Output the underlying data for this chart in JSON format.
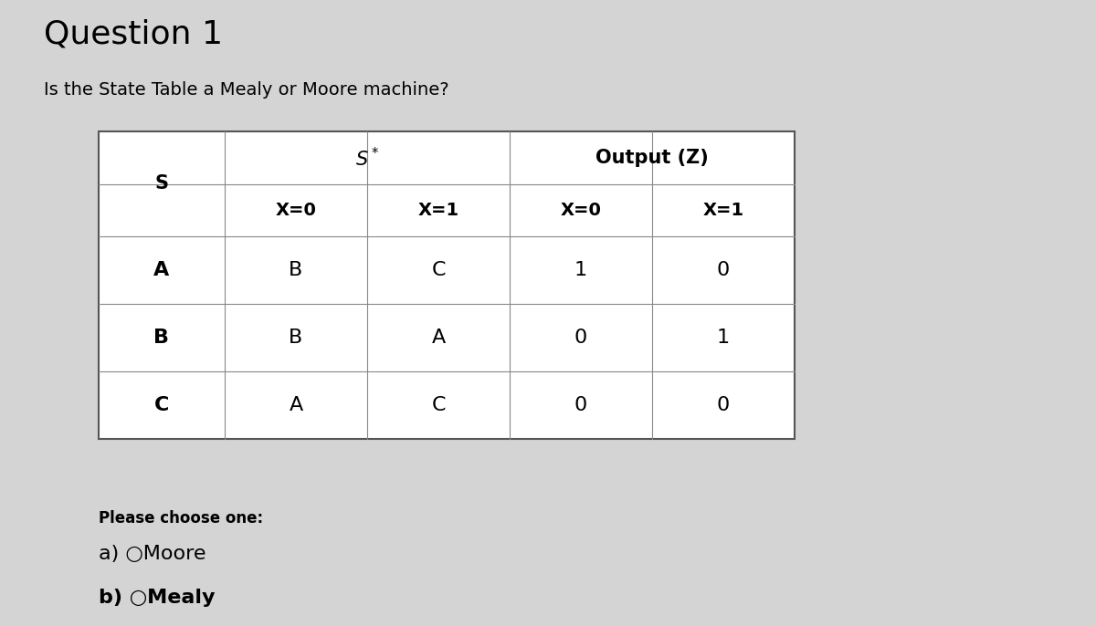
{
  "title": "Question 1",
  "subtitle": "Is the State Table a Mealy or Moore machine?",
  "background_color": "#d4d4d4",
  "rows": [
    [
      "A",
      "B",
      "C",
      "1",
      "0"
    ],
    [
      "B",
      "B",
      "A",
      "0",
      "1"
    ],
    [
      "C",
      "A",
      "C",
      "0",
      "0"
    ]
  ],
  "please_choose": "Please choose one:",
  "option_a": "a) ○Moore",
  "option_b": "b) ○Mealy",
  "title_fontsize": 26,
  "subtitle_fontsize": 14,
  "table_fontsize": 14,
  "options_fontsize": 16,
  "please_fontsize": 12
}
